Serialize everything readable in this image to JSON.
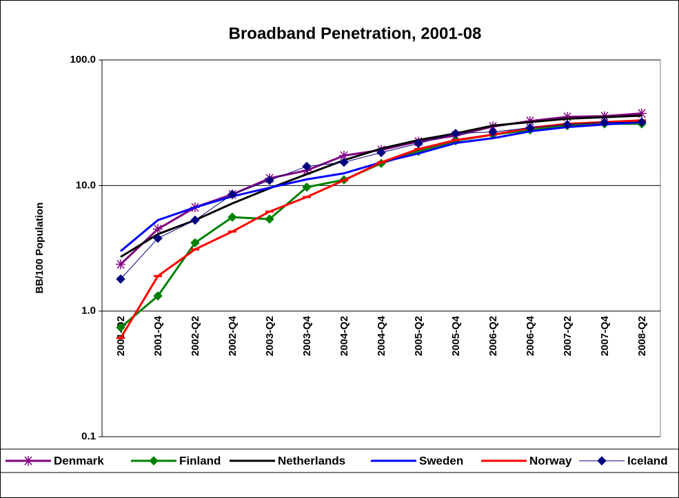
{
  "chart_data": {
    "type": "line",
    "title": "Broadband Penetration, 2001-08",
    "y_label": "BB/100 Population",
    "y_log": true,
    "grid": true,
    "legend": "bottom",
    "categories": [
      "2001-Q2",
      "2001-Q4",
      "2002-Q2",
      "2002-Q4",
      "2003-Q2",
      "2003-Q4",
      "2004-Q2",
      "2004-Q4",
      "2005-Q2",
      "2005-Q4",
      "2006-Q2",
      "2006-Q4",
      "2007-Q2",
      "2007-Q4",
      "2008-Q2"
    ],
    "ylim": [
      0.1,
      100
    ],
    "yticks": [
      {
        "value": 0.1,
        "label": "0.1"
      },
      {
        "value": 1,
        "label": "1.0"
      },
      {
        "value": 10,
        "label": "10.0"
      },
      {
        "value": 100,
        "label": "100.0"
      }
    ],
    "series": [
      {
        "name": "Denmark",
        "color": "#800080",
        "marker": "asterisk",
        "line_width": 3,
        "values": [
          2.36,
          4.5,
          6.7,
          8.5,
          11.4,
          13.2,
          17.3,
          19.2,
          22.4,
          25,
          29.5,
          32.6,
          35.2,
          35.7,
          37.5
        ]
      },
      {
        "name": "Finland",
        "color": "#008000",
        "marker": "diamond",
        "line_width": 3,
        "values": [
          0.74,
          1.32,
          3.5,
          5.6,
          5.4,
          9.7,
          11.1,
          15,
          18.7,
          22.7,
          25.4,
          27.7,
          30,
          31,
          31
        ]
      },
      {
        "name": "Netherlands",
        "color": "#000000",
        "line_width": 3,
        "values": [
          2.7,
          4.1,
          5.3,
          7.2,
          9.5,
          12.3,
          15.9,
          19.7,
          23,
          26,
          30,
          32,
          34,
          35,
          36
        ]
      },
      {
        "name": "Sweden",
        "color": "#0000ff",
        "line_width": 3,
        "values": [
          3.0,
          5.3,
          6.7,
          8.2,
          9.6,
          11.2,
          12.5,
          15.3,
          18,
          21.8,
          23.8,
          27,
          29.2,
          30.6,
          32
        ]
      },
      {
        "name": "Norway",
        "color": "#ff0000",
        "marker": "dash",
        "line_width": 3,
        "values": [
          0.61,
          1.9,
          3.1,
          4.3,
          6.2,
          8.1,
          11,
          15.3,
          19.5,
          23,
          25.4,
          28.8,
          31,
          32,
          33
        ]
      },
      {
        "name": "Iceland",
        "color": "#000080",
        "marker": "diamond",
        "line_width": 1,
        "values": [
          1.8,
          3.8,
          5.3,
          8.5,
          11,
          14.2,
          15.3,
          18.3,
          21.6,
          26,
          26.7,
          28.8,
          30.6,
          31.8,
          32
        ]
      }
    ]
  }
}
